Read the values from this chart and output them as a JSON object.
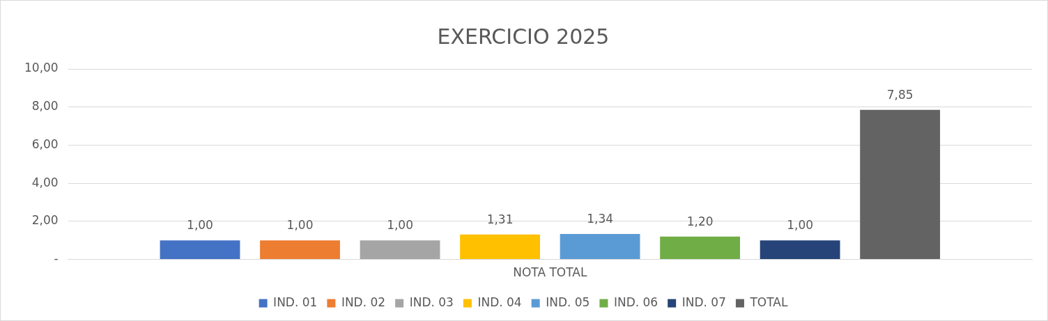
{
  "chart_data": {
    "type": "bar",
    "title": "EXERCICIO 2025",
    "categories": [
      "NOTA TOTAL"
    ],
    "series": [
      {
        "name": "IND. 01",
        "color": "#4472c4",
        "values": [
          1.0
        ],
        "value_labels": [
          "1,00"
        ]
      },
      {
        "name": "IND. 02",
        "color": "#ed7d31",
        "values": [
          1.0
        ],
        "value_labels": [
          "1,00"
        ]
      },
      {
        "name": "IND. 03",
        "color": "#a5a5a5",
        "values": [
          1.0
        ],
        "value_labels": [
          "1,00"
        ]
      },
      {
        "name": "IND. 04",
        "color": "#ffc000",
        "values": [
          1.31
        ],
        "value_labels": [
          "1,31"
        ]
      },
      {
        "name": "IND. 05",
        "color": "#5b9bd5",
        "values": [
          1.34
        ],
        "value_labels": [
          "1,34"
        ]
      },
      {
        "name": "IND. 06",
        "color": "#70ad47",
        "values": [
          1.2
        ],
        "value_labels": [
          "1,20"
        ]
      },
      {
        "name": "IND. 07",
        "color": "#264478",
        "values": [
          1.0
        ],
        "value_labels": [
          "1,00"
        ]
      },
      {
        "name": "TOTAL",
        "color": "#636363",
        "values": [
          7.85
        ],
        "value_labels": [
          "7,85"
        ]
      }
    ],
    "ylim": [
      0,
      10
    ],
    "yticks": [
      {
        "value": 0,
        "label": "-"
      },
      {
        "value": 2,
        "label": "2,00"
      },
      {
        "value": 4,
        "label": "4,00"
      },
      {
        "value": 6,
        "label": "6,00"
      },
      {
        "value": 8,
        "label": "8,00"
      },
      {
        "value": 10,
        "label": "10,00"
      }
    ],
    "grid": "y",
    "legend": "bottom"
  }
}
